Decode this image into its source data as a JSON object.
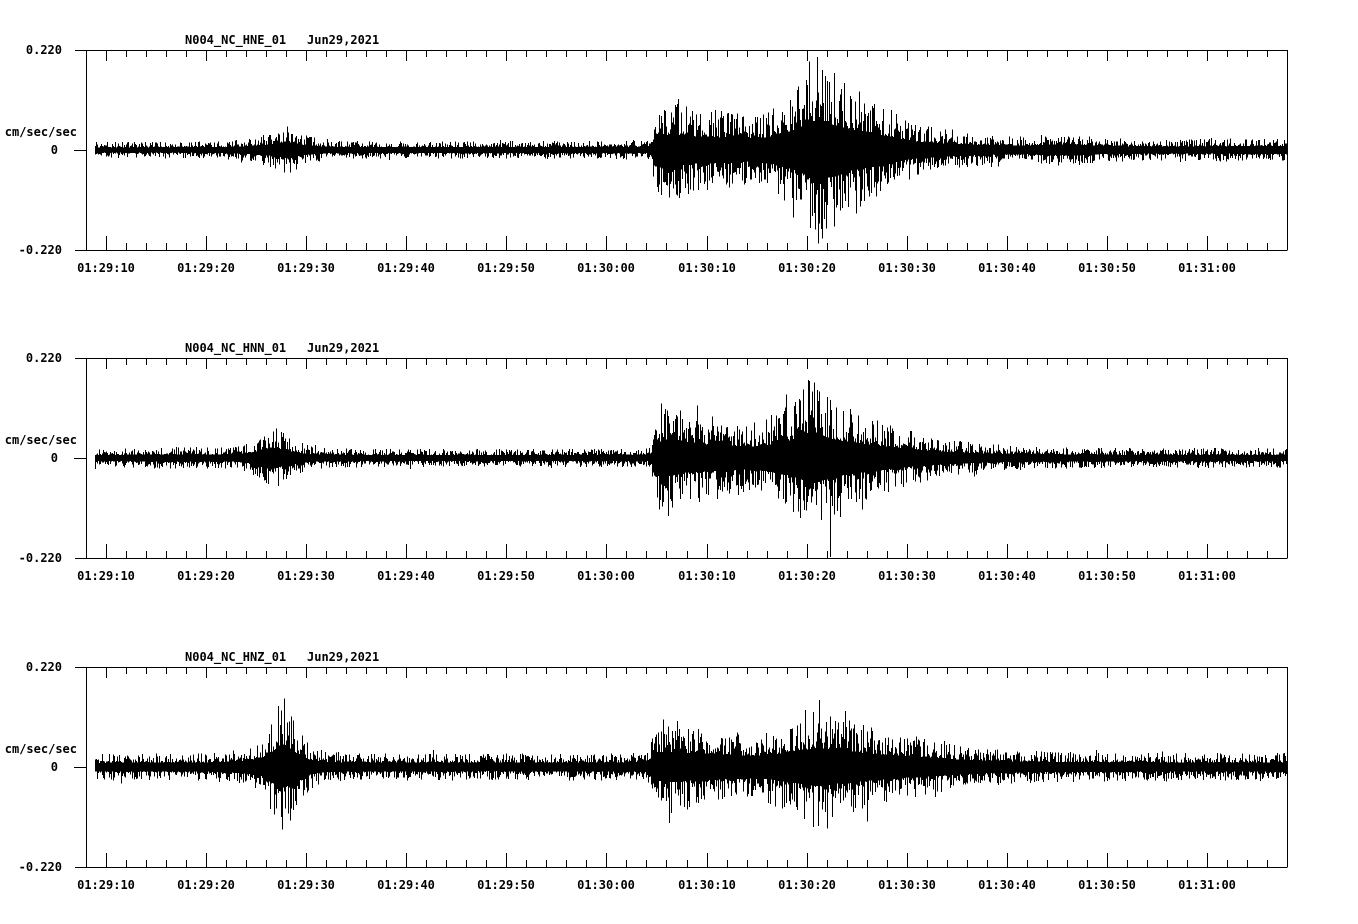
{
  "page": {
    "background": "#ffffff",
    "foreground": "#000000"
  },
  "chart_data": [
    {
      "type": "line",
      "subtype": "seismogram",
      "station": "N004_NC_HNE_01",
      "date": "Jun29,2021",
      "ylabel": "cm/sec/sec",
      "ylim": [
        -0.22,
        0.22
      ],
      "yticks": [
        {
          "value": 0.22,
          "label": "0.220"
        },
        {
          "value": 0,
          "label": "0"
        },
        {
          "value": -0.22,
          "label": "-0.220"
        }
      ],
      "x_span_seconds": 120,
      "x_minor_tick_seconds": 2,
      "xticks": [
        {
          "t": 2,
          "label": "01:29:10"
        },
        {
          "t": 12,
          "label": "01:29:20"
        },
        {
          "t": 22,
          "label": "01:29:30"
        },
        {
          "t": 32,
          "label": "01:29:40"
        },
        {
          "t": 42,
          "label": "01:29:50"
        },
        {
          "t": 52,
          "label": "01:30:00"
        },
        {
          "t": 62,
          "label": "01:30:10"
        },
        {
          "t": 72,
          "label": "01:30:20"
        },
        {
          "t": 82,
          "label": "01:30:30"
        },
        {
          "t": 92,
          "label": "01:30:40"
        },
        {
          "t": 102,
          "label": "01:30:50"
        },
        {
          "t": 112,
          "label": "01:31:00"
        }
      ],
      "envelope": [
        [
          0.9,
          0.018
        ],
        [
          13,
          0.019
        ],
        [
          16,
          0.026
        ],
        [
          18,
          0.035
        ],
        [
          20,
          0.055
        ],
        [
          22,
          0.032
        ],
        [
          24,
          0.022
        ],
        [
          30,
          0.019
        ],
        [
          45,
          0.02
        ],
        [
          56.4,
          0.022
        ],
        [
          56.8,
          0.1
        ],
        [
          59,
          0.106
        ],
        [
          61,
          0.092
        ],
        [
          63,
          0.088
        ],
        [
          65,
          0.084
        ],
        [
          66.5,
          0.077
        ],
        [
          68,
          0.086
        ],
        [
          70,
          0.12
        ],
        [
          72,
          0.165
        ],
        [
          73,
          0.209
        ],
        [
          74,
          0.187
        ],
        [
          75.5,
          0.154
        ],
        [
          77,
          0.132
        ],
        [
          79,
          0.11
        ],
        [
          81,
          0.079
        ],
        [
          83,
          0.057
        ],
        [
          86,
          0.044
        ],
        [
          89,
          0.035
        ],
        [
          91,
          0.031
        ],
        [
          94,
          0.029
        ],
        [
          96,
          0.036
        ],
        [
          99,
          0.035
        ],
        [
          101,
          0.028
        ],
        [
          105,
          0.025
        ],
        [
          110,
          0.024
        ],
        [
          115,
          0.026
        ],
        [
          120,
          0.026
        ]
      ],
      "spikes": [
        [
          73.0,
          0.205
        ],
        [
          73.15,
          -0.206
        ],
        [
          72.3,
          -0.172
        ],
        [
          71.9,
          0.154
        ],
        [
          74.2,
          0.15
        ],
        [
          74.7,
          -0.168
        ],
        [
          70.6,
          -0.148
        ],
        [
          75.7,
          0.147
        ],
        [
          76.9,
          -0.14
        ],
        [
          59.2,
          0.112
        ],
        [
          58.3,
          -0.105
        ]
      ]
    },
    {
      "type": "line",
      "subtype": "seismogram",
      "station": "N004_NC_HNN_01",
      "date": "Jun29,2021",
      "ylabel": "cm/sec/sec",
      "ylim": [
        -0.22,
        0.22
      ],
      "yticks": [
        {
          "value": 0.22,
          "label": "0.220"
        },
        {
          "value": 0,
          "label": "0"
        },
        {
          "value": -0.22,
          "label": "-0.220"
        }
      ],
      "x_span_seconds": 120,
      "x_minor_tick_seconds": 2,
      "xticks": [
        {
          "t": 2,
          "label": "01:29:10"
        },
        {
          "t": 12,
          "label": "01:29:20"
        },
        {
          "t": 22,
          "label": "01:29:30"
        },
        {
          "t": 32,
          "label": "01:29:40"
        },
        {
          "t": 42,
          "label": "01:29:50"
        },
        {
          "t": 52,
          "label": "01:30:00"
        },
        {
          "t": 62,
          "label": "01:30:10"
        },
        {
          "t": 72,
          "label": "01:30:20"
        },
        {
          "t": 82,
          "label": "01:30:30"
        },
        {
          "t": 92,
          "label": "01:30:40"
        },
        {
          "t": 102,
          "label": "01:30:50"
        },
        {
          "t": 112,
          "label": "01:31:00"
        }
      ],
      "envelope": [
        [
          0.9,
          0.02
        ],
        [
          11,
          0.026
        ],
        [
          13,
          0.022
        ],
        [
          15,
          0.026
        ],
        [
          17,
          0.042
        ],
        [
          18.5,
          0.073
        ],
        [
          20,
          0.051
        ],
        [
          21.5,
          0.033
        ],
        [
          23,
          0.024
        ],
        [
          28,
          0.02
        ],
        [
          45,
          0.02
        ],
        [
          56.4,
          0.022
        ],
        [
          56.8,
          0.11
        ],
        [
          58.5,
          0.121
        ],
        [
          60,
          0.099
        ],
        [
          62,
          0.092
        ],
        [
          64,
          0.088
        ],
        [
          66,
          0.077
        ],
        [
          67.5,
          0.081
        ],
        [
          69,
          0.099
        ],
        [
          71,
          0.132
        ],
        [
          72.2,
          0.176
        ],
        [
          73.2,
          0.163
        ],
        [
          74.5,
          0.132
        ],
        [
          76,
          0.11
        ],
        [
          78,
          0.095
        ],
        [
          80,
          0.077
        ],
        [
          82,
          0.062
        ],
        [
          84,
          0.051
        ],
        [
          87,
          0.038
        ],
        [
          90,
          0.031
        ],
        [
          94,
          0.026
        ],
        [
          98,
          0.024
        ],
        [
          104,
          0.022
        ],
        [
          112,
          0.022
        ],
        [
          120,
          0.022
        ]
      ],
      "spikes": [
        [
          74.3,
          -0.218
        ],
        [
          72.1,
          0.172
        ],
        [
          73.0,
          0.15
        ],
        [
          71.3,
          -0.132
        ],
        [
          69.9,
          0.14
        ],
        [
          58.2,
          -0.128
        ],
        [
          57.5,
          0.12
        ],
        [
          75.3,
          -0.13
        ]
      ]
    },
    {
      "type": "line",
      "subtype": "seismogram",
      "station": "N004_NC_HNZ_01",
      "date": "Jun29,2021",
      "ylabel": "cm/sec/sec",
      "ylim": [
        -0.22,
        0.22
      ],
      "yticks": [
        {
          "value": 0.22,
          "label": "0.220"
        },
        {
          "value": 0,
          "label": "0"
        },
        {
          "value": -0.22,
          "label": "-0.220"
        }
      ],
      "x_span_seconds": 120,
      "x_minor_tick_seconds": 2,
      "xticks": [
        {
          "t": 2,
          "label": "01:29:10"
        },
        {
          "t": 12,
          "label": "01:29:20"
        },
        {
          "t": 22,
          "label": "01:29:30"
        },
        {
          "t": 32,
          "label": "01:29:40"
        },
        {
          "t": 42,
          "label": "01:29:50"
        },
        {
          "t": 52,
          "label": "01:30:00"
        },
        {
          "t": 62,
          "label": "01:30:10"
        },
        {
          "t": 72,
          "label": "01:30:20"
        },
        {
          "t": 82,
          "label": "01:30:30"
        },
        {
          "t": 92,
          "label": "01:30:40"
        },
        {
          "t": 102,
          "label": "01:30:50"
        },
        {
          "t": 112,
          "label": "01:31:00"
        }
      ],
      "envelope": [
        [
          0.9,
          0.029
        ],
        [
          12,
          0.031
        ],
        [
          14,
          0.035
        ],
        [
          16,
          0.044
        ],
        [
          17.5,
          0.062
        ],
        [
          19,
          0.125
        ],
        [
          19.8,
          0.143
        ],
        [
          21,
          0.095
        ],
        [
          22,
          0.055
        ],
        [
          23.5,
          0.037
        ],
        [
          26,
          0.031
        ],
        [
          40,
          0.029
        ],
        [
          54,
          0.031
        ],
        [
          56,
          0.033
        ],
        [
          56.8,
          0.09
        ],
        [
          58.5,
          0.105
        ],
        [
          60.5,
          0.092
        ],
        [
          63,
          0.085
        ],
        [
          65,
          0.08
        ],
        [
          67,
          0.077
        ],
        [
          69,
          0.088
        ],
        [
          71,
          0.11
        ],
        [
          73.2,
          0.132
        ],
        [
          75,
          0.115
        ],
        [
          77,
          0.1
        ],
        [
          79,
          0.088
        ],
        [
          81,
          0.077
        ],
        [
          84,
          0.066
        ],
        [
          87,
          0.051
        ],
        [
          90,
          0.042
        ],
        [
          94,
          0.036
        ],
        [
          100,
          0.033
        ],
        [
          110,
          0.031
        ],
        [
          120,
          0.031
        ]
      ],
      "spikes": [
        [
          19.8,
          0.151
        ],
        [
          19.2,
          0.134
        ],
        [
          20.4,
          -0.118
        ],
        [
          18.8,
          -0.105
        ],
        [
          73.2,
          0.147
        ],
        [
          74.0,
          -0.135
        ],
        [
          72.6,
          -0.132
        ],
        [
          71.8,
          0.125
        ],
        [
          75.8,
          0.123
        ],
        [
          78.0,
          -0.12
        ],
        [
          58.3,
          -0.123
        ],
        [
          57.7,
          0.105
        ]
      ]
    }
  ]
}
